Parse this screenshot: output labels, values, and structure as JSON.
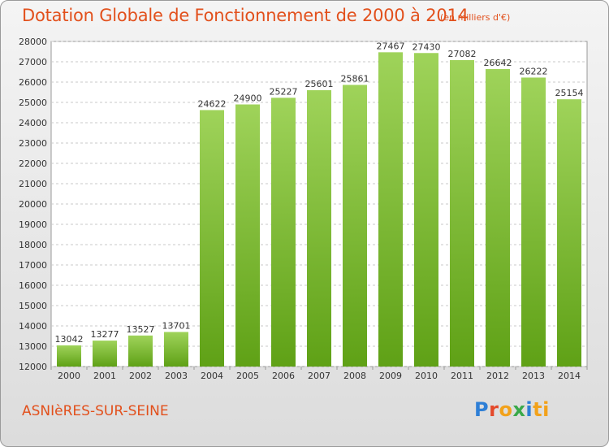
{
  "title": "Dotation Globale de Fonctionnement de 2000 à 2014",
  "unit_note": "(en milliers d'€)",
  "commune": "ASNIèRES-SUR-SEINE",
  "logo_text": [
    "P",
    "r",
    "o",
    "x",
    "i",
    "ti"
  ],
  "colors": {
    "bar_light": "#9fd35a",
    "bar_dark": "#5fa116",
    "text_accent": "#e2501c"
  },
  "chart_data": {
    "type": "bar",
    "categories": [
      "2000",
      "2001",
      "2002",
      "2003",
      "2004",
      "2005",
      "2006",
      "2007",
      "2008",
      "2009",
      "2010",
      "2011",
      "2012",
      "2013",
      "2014"
    ],
    "values": [
      13042,
      13277,
      13527,
      13701,
      24622,
      24900,
      25227,
      25601,
      25861,
      27467,
      27430,
      27082,
      26642,
      26222,
      25154
    ],
    "ylim": [
      12000,
      28000
    ],
    "yticks": [
      12000,
      13000,
      14000,
      15000,
      16000,
      17000,
      18000,
      19000,
      20000,
      21000,
      22000,
      23000,
      24000,
      25000,
      26000,
      27000,
      28000
    ],
    "grid": true,
    "xlabel": "",
    "ylabel": ""
  }
}
